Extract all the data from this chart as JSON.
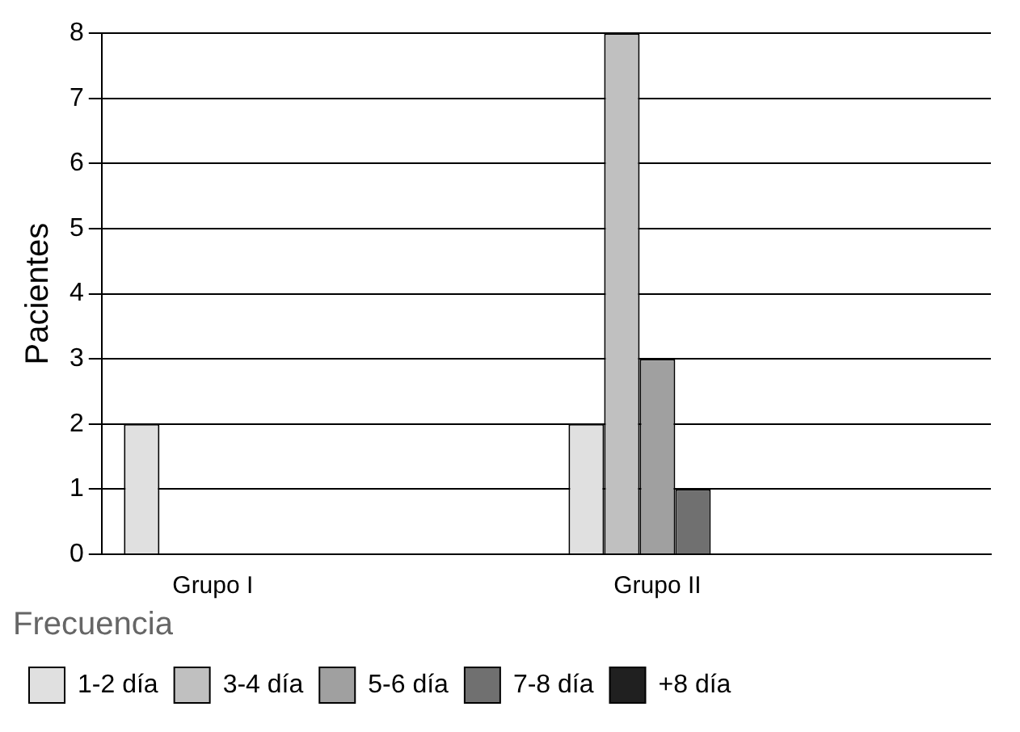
{
  "chart_data": {
    "type": "bar",
    "ylabel": "Pacientes",
    "legend_title": "Frecuencia",
    "categories": [
      "Grupo I",
      null,
      "Grupo II",
      null
    ],
    "series": [
      {
        "name": "1-2 día",
        "color": "#e0e0e0",
        "values": [
          2,
          null,
          2,
          null
        ]
      },
      {
        "name": "3-4 día",
        "color": "#c0c0c0",
        "values": [
          0,
          null,
          8,
          null
        ]
      },
      {
        "name": "5-6 día",
        "color": "#a0a0a0",
        "values": [
          0,
          null,
          3,
          null
        ]
      },
      {
        "name": "7-8 día",
        "color": "#707070",
        "values": [
          0,
          null,
          1,
          null
        ]
      },
      {
        "name": "+8 día",
        "color": "#202020",
        "values": [
          0,
          null,
          0,
          null
        ]
      }
    ],
    "ylim": [
      0,
      8
    ],
    "yticks": [
      0,
      1,
      2,
      3,
      4,
      5,
      6,
      7,
      8
    ],
    "grid": "y",
    "legend": "bottom"
  }
}
